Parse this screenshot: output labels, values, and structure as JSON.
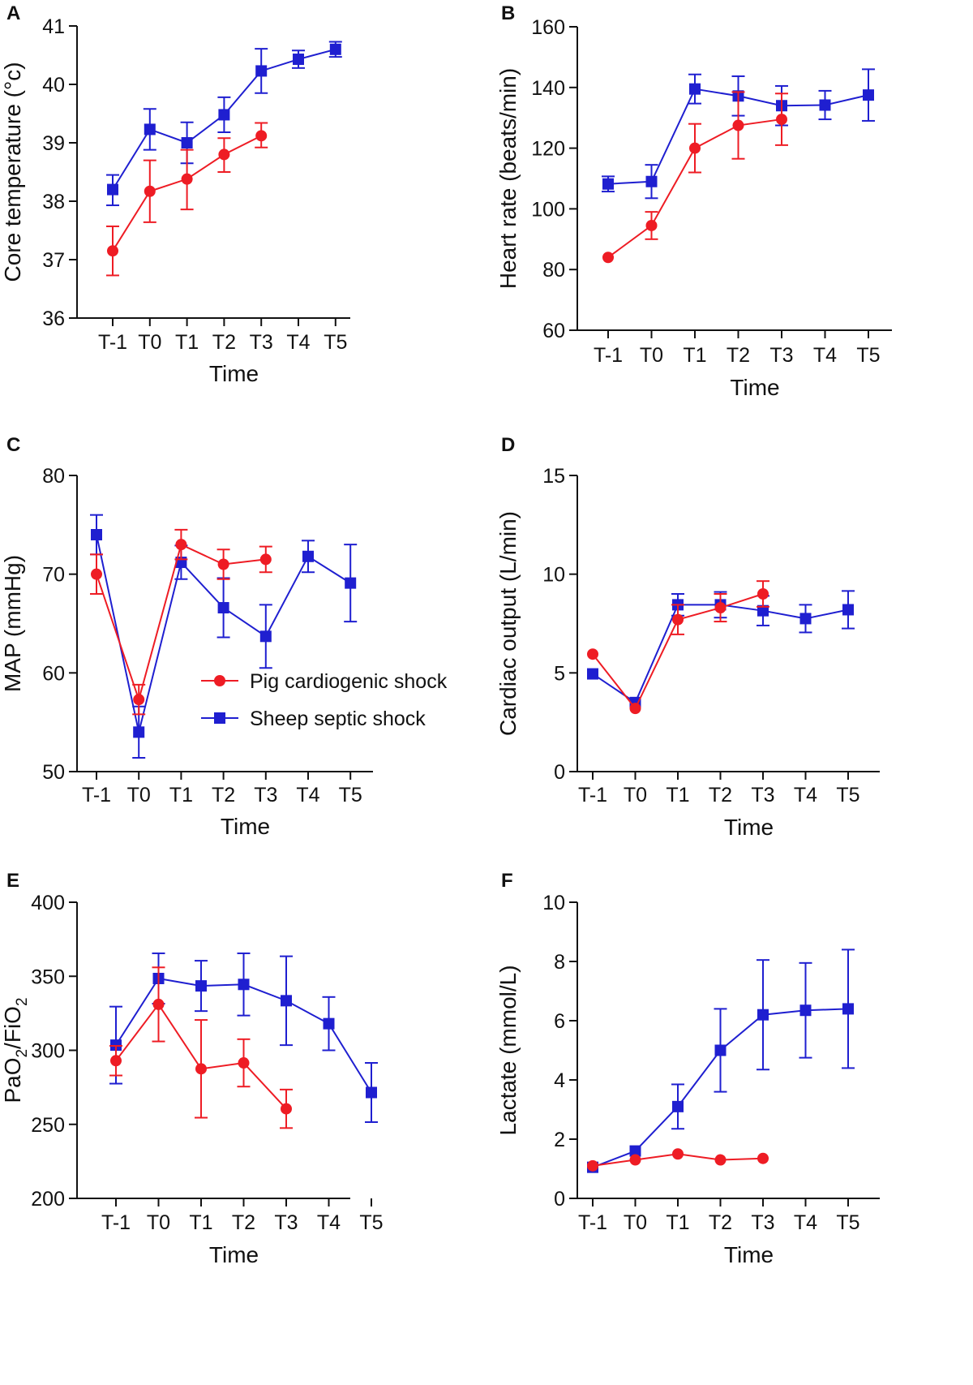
{
  "colors": {
    "pig": "#ee1c24",
    "sheep": "#1f1fd0",
    "axis": "#111111"
  },
  "legend": {
    "pig_label": "Pig cardiogenic shock",
    "sheep_label": "Sheep septic shock"
  },
  "chart_data": [
    {
      "panel": "A",
      "type": "line",
      "x": [
        "T-1",
        "T0",
        "T1",
        "T2",
        "T3",
        "T4",
        "T5"
      ],
      "xlabel": "Time",
      "ylabel": "Core temperature (°c)",
      "ylim": [
        36,
        41
      ],
      "yticks": [
        36,
        37,
        38,
        39,
        40,
        41
      ],
      "series": [
        {
          "name": "Pig cardiogenic shock",
          "marker": "circle",
          "values": [
            37.15,
            38.17,
            38.38,
            38.8,
            39.12,
            null,
            null
          ],
          "err_low": [
            0.42,
            0.53,
            0.52,
            0.3,
            0.2,
            null,
            null
          ],
          "err_high": [
            0.42,
            0.53,
            0.5,
            0.28,
            0.22,
            null,
            null
          ]
        },
        {
          "name": "Sheep septic shock",
          "marker": "square",
          "values": [
            38.2,
            39.23,
            39.0,
            39.48,
            40.23,
            40.43,
            40.6
          ],
          "err_low": [
            0.27,
            0.35,
            0.35,
            0.3,
            0.38,
            0.15,
            0.13
          ],
          "err_high": [
            0.25,
            0.35,
            0.35,
            0.3,
            0.38,
            0.15,
            0.13
          ]
        }
      ]
    },
    {
      "panel": "B",
      "type": "line",
      "x": [
        "T-1",
        "T0",
        "T1",
        "T2",
        "T3",
        "T4",
        "T5"
      ],
      "xlabel": "Time",
      "ylabel": "Heart rate (beats/min)",
      "ylim": [
        60,
        160
      ],
      "yticks": [
        60,
        80,
        100,
        120,
        140,
        160
      ],
      "series": [
        {
          "name": "Pig cardiogenic shock",
          "marker": "circle",
          "values": [
            84,
            94.5,
            120,
            127.5,
            129.5,
            null,
            null
          ],
          "err_low": [
            0,
            4.5,
            8,
            11,
            8.5,
            null,
            null
          ],
          "err_high": [
            0,
            4.5,
            8,
            11,
            8.5,
            null,
            null
          ]
        },
        {
          "name": "Sheep septic shock",
          "marker": "square",
          "values": [
            108.2,
            109,
            139.5,
            137.2,
            134,
            134.2,
            137.5
          ],
          "err_low": [
            2.5,
            5.5,
            4.8,
            6.5,
            6.5,
            4.7,
            8.5
          ],
          "err_high": [
            2.5,
            5.5,
            4.8,
            6.5,
            6.5,
            4.7,
            8.5
          ]
        }
      ]
    },
    {
      "panel": "C",
      "type": "line",
      "x": [
        "T-1",
        "T0",
        "T1",
        "T2",
        "T3",
        "T4",
        "T5"
      ],
      "xlabel": "Time",
      "ylabel": "MAP (mmHg)",
      "ylim": [
        50,
        80
      ],
      "yticks": [
        50,
        60,
        70,
        80
      ],
      "series": [
        {
          "name": "Pig cardiogenic shock",
          "marker": "circle",
          "values": [
            70,
            57.3,
            73,
            71,
            71.5,
            null,
            null
          ],
          "err_low": [
            2,
            1.5,
            1.5,
            1.5,
            1.3,
            null,
            null
          ],
          "err_high": [
            2,
            1.5,
            1.5,
            1.5,
            1.3,
            null,
            null
          ]
        },
        {
          "name": "Sheep septic shock",
          "marker": "square",
          "values": [
            74,
            54,
            71.2,
            66.6,
            63.7,
            71.8,
            69.1
          ],
          "err_low": [
            2,
            2.6,
            1.7,
            3,
            3.2,
            1.6,
            3.9
          ],
          "err_high": [
            2,
            2.6,
            1.7,
            3,
            3.2,
            1.6,
            3.9
          ]
        }
      ]
    },
    {
      "panel": "D",
      "type": "line",
      "x": [
        "T-1",
        "T0",
        "T1",
        "T2",
        "T3",
        "T4",
        "T5"
      ],
      "xlabel": "Time",
      "ylabel": "Cardiac output (L/min)",
      "ylim": [
        0,
        15
      ],
      "yticks": [
        0,
        5,
        10,
        15
      ],
      "series": [
        {
          "name": "Pig cardiogenic shock",
          "marker": "circle",
          "values": [
            5.95,
            3.2,
            7.7,
            8.3,
            9.0,
            null,
            null
          ],
          "err_low": [
            0,
            0,
            0.75,
            0.7,
            0.65,
            null,
            null
          ],
          "err_high": [
            0,
            0,
            0.75,
            0.7,
            0.65,
            null,
            null
          ]
        },
        {
          "name": "Sheep septic shock",
          "marker": "square",
          "values": [
            4.95,
            3.5,
            8.45,
            8.45,
            8.15,
            7.75,
            8.2
          ],
          "err_low": [
            0,
            0,
            0.55,
            0.65,
            0.75,
            0.7,
            0.95
          ],
          "err_high": [
            0,
            0,
            0.55,
            0.65,
            0.75,
            0.7,
            0.95
          ]
        }
      ]
    },
    {
      "panel": "E",
      "type": "line",
      "x": [
        "T-1",
        "T0",
        "T1",
        "T2",
        "T3",
        "T4",
        "T5"
      ],
      "xlabel": "Time",
      "ylabel": "PaO2/FiO2",
      "ylim": [
        200,
        400
      ],
      "yticks": [
        200,
        250,
        300,
        350,
        400
      ],
      "series": [
        {
          "name": "Pig cardiogenic shock",
          "marker": "circle",
          "values": [
            293,
            331,
            287.5,
            291.5,
            260.5,
            null,
            null
          ],
          "err_low": [
            10,
            25,
            33,
            16,
            13,
            null,
            null
          ],
          "err_high": [
            10,
            25,
            33,
            16,
            13,
            null,
            null
          ]
        },
        {
          "name": "Sheep septic shock",
          "marker": "square",
          "values": [
            303.5,
            348.5,
            343.5,
            344.5,
            333.5,
            318,
            271.5
          ],
          "err_low": [
            26,
            17,
            17,
            21,
            30,
            18,
            20
          ],
          "err_high": [
            26,
            17,
            17,
            21,
            30,
            18,
            20
          ]
        }
      ]
    },
    {
      "panel": "F",
      "type": "line",
      "x": [
        "T-1",
        "T0",
        "T1",
        "T2",
        "T3",
        "T4",
        "T5"
      ],
      "xlabel": "Time",
      "ylabel": "Lactate (mmol/L)",
      "ylim": [
        0,
        10
      ],
      "yticks": [
        0,
        2,
        4,
        6,
        8,
        10
      ],
      "series": [
        {
          "name": "Pig cardiogenic shock",
          "marker": "circle",
          "values": [
            1.1,
            1.3,
            1.5,
            1.3,
            1.35,
            null,
            null
          ],
          "err_low": [
            0,
            0,
            0,
            0,
            0,
            null,
            null
          ],
          "err_high": [
            0,
            0,
            0,
            0,
            0,
            null,
            null
          ]
        },
        {
          "name": "Sheep septic shock",
          "marker": "square",
          "values": [
            1.05,
            1.6,
            3.1,
            5.0,
            6.2,
            6.35,
            6.4
          ],
          "err_low": [
            0,
            0,
            0.75,
            1.4,
            1.85,
            1.6,
            2.0
          ],
          "err_high": [
            0,
            0,
            0.75,
            1.4,
            1.85,
            1.6,
            2.0
          ]
        }
      ]
    }
  ]
}
